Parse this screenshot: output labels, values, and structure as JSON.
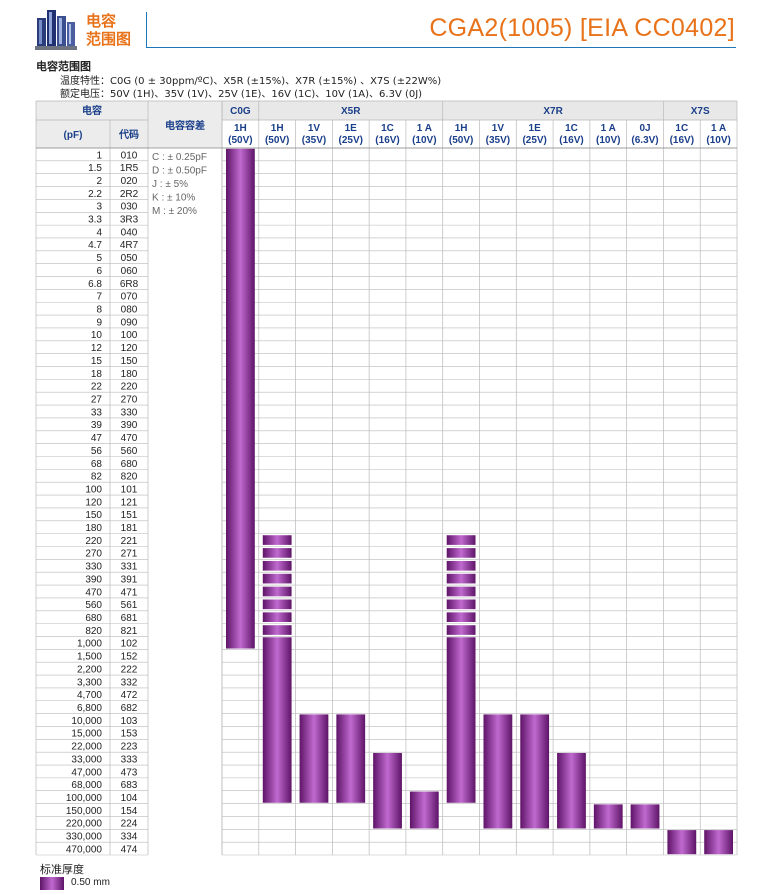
{
  "header": {
    "category": [
      "电容",
      "范围图"
    ],
    "title": "CGA2(1005) [EIA CC0402]"
  },
  "section_title": "电容范围图",
  "notes": {
    "temp_label": "温度特性：",
    "temp_value": "C0G (0 ± 30ppm/ºC)、X5R (±15%)、X7R (±15%) 、X7S (±22W%)",
    "volt_label": "额定电压：",
    "volt_value": "50V (1H)、35V (1V)、25V (1E)、16V (1C)、10V (1A)、6.3V (0J)"
  },
  "table": {
    "cap_header": "电容",
    "unit_header": "(pF)",
    "code_header": "代码",
    "tol_header": "电容容差",
    "tolerances": [
      "C : ± 0.25pF",
      "D : ± 0.50pF",
      "J : ± 5%",
      "K : ± 10%",
      "M : ± 20%"
    ],
    "groups": [
      {
        "name": "C0G",
        "cols": [
          0
        ]
      },
      {
        "name": "X5R",
        "cols": [
          1,
          2,
          3,
          4,
          5
        ]
      },
      {
        "name": "X7R",
        "cols": [
          6,
          7,
          8,
          9,
          10,
          11
        ]
      },
      {
        "name": "X7S",
        "cols": [
          12,
          13
        ]
      }
    ],
    "columns": [
      {
        "code": "1H",
        "volt": "(50V)"
      },
      {
        "code": "1H",
        "volt": "(50V)"
      },
      {
        "code": "1V",
        "volt": "(35V)"
      },
      {
        "code": "1E",
        "volt": "(25V)"
      },
      {
        "code": "1C",
        "volt": "(16V)"
      },
      {
        "code": "1 A",
        "volt": "(10V)"
      },
      {
        "code": "1H",
        "volt": "(50V)"
      },
      {
        "code": "1V",
        "volt": "(35V)"
      },
      {
        "code": "1E",
        "volt": "(25V)"
      },
      {
        "code": "1C",
        "volt": "(16V)"
      },
      {
        "code": "1 A",
        "volt": "(10V)"
      },
      {
        "code": "0J",
        "volt": "(6.3V)"
      },
      {
        "code": "1C",
        "volt": "(16V)"
      },
      {
        "code": "1 A",
        "volt": "(10V)"
      }
    ],
    "rows": [
      [
        "1",
        "010"
      ],
      [
        "1.5",
        "1R5"
      ],
      [
        "2",
        "020"
      ],
      [
        "2.2",
        "2R2"
      ],
      [
        "3",
        "030"
      ],
      [
        "3.3",
        "3R3"
      ],
      [
        "4",
        "040"
      ],
      [
        "4.7",
        "4R7"
      ],
      [
        "5",
        "050"
      ],
      [
        "6",
        "060"
      ],
      [
        "6.8",
        "6R8"
      ],
      [
        "7",
        "070"
      ],
      [
        "8",
        "080"
      ],
      [
        "9",
        "090"
      ],
      [
        "10",
        "100"
      ],
      [
        "12",
        "120"
      ],
      [
        "15",
        "150"
      ],
      [
        "18",
        "180"
      ],
      [
        "22",
        "220"
      ],
      [
        "27",
        "270"
      ],
      [
        "33",
        "330"
      ],
      [
        "39",
        "390"
      ],
      [
        "47",
        "470"
      ],
      [
        "56",
        "560"
      ],
      [
        "68",
        "680"
      ],
      [
        "82",
        "820"
      ],
      [
        "100",
        "101"
      ],
      [
        "120",
        "121"
      ],
      [
        "150",
        "151"
      ],
      [
        "180",
        "181"
      ],
      [
        "220",
        "221"
      ],
      [
        "270",
        "271"
      ],
      [
        "330",
        "331"
      ],
      [
        "390",
        "391"
      ],
      [
        "470",
        "471"
      ],
      [
        "560",
        "561"
      ],
      [
        "680",
        "681"
      ],
      [
        "820",
        "821"
      ],
      [
        "1,000",
        "102"
      ],
      [
        "1,500",
        "152"
      ],
      [
        "2,200",
        "222"
      ],
      [
        "3,300",
        "332"
      ],
      [
        "4,700",
        "472"
      ],
      [
        "6,800",
        "682"
      ],
      [
        "10,000",
        "103"
      ],
      [
        "15,000",
        "153"
      ],
      [
        "22,000",
        "223"
      ],
      [
        "33,000",
        "333"
      ],
      [
        "47,000",
        "473"
      ],
      [
        "68,000",
        "683"
      ],
      [
        "100,000",
        "104"
      ],
      [
        "150,000",
        "154"
      ],
      [
        "220,000",
        "224"
      ],
      [
        "330,000",
        "334"
      ],
      [
        "470,000",
        "474"
      ]
    ],
    "ranges": [
      {
        "col": 0,
        "from": "1",
        "to": "1,000",
        "style": "bar"
      },
      {
        "col": 1,
        "from": "220",
        "to": "820",
        "style": "pills"
      },
      {
        "col": 1,
        "from": "1,000",
        "to": "100,000",
        "style": "bar"
      },
      {
        "col": 2,
        "from": "10,000",
        "to": "100,000",
        "style": "bar"
      },
      {
        "col": 3,
        "from": "10,000",
        "to": "100,000",
        "style": "bar"
      },
      {
        "col": 4,
        "from": "33,000",
        "to": "220,000",
        "style": "bar"
      },
      {
        "col": 5,
        "from": "100,000",
        "to": "220,000",
        "style": "bar"
      },
      {
        "col": 6,
        "from": "220",
        "to": "820",
        "style": "pills"
      },
      {
        "col": 6,
        "from": "1,000",
        "to": "100,000",
        "style": "bar"
      },
      {
        "col": 7,
        "from": "10,000",
        "to": "220,000",
        "style": "bar"
      },
      {
        "col": 8,
        "from": "10,000",
        "to": "220,000",
        "style": "bar"
      },
      {
        "col": 9,
        "from": "33,000",
        "to": "220,000",
        "style": "bar"
      },
      {
        "col": 10,
        "from": "150,000",
        "to": "220,000",
        "style": "bar"
      },
      {
        "col": 11,
        "from": "150,000",
        "to": "220,000",
        "style": "bar"
      },
      {
        "col": 12,
        "from": "330,000",
        "to": "470,000",
        "style": "bar"
      },
      {
        "col": 13,
        "from": "330,000",
        "to": "470,000",
        "style": "bar"
      }
    ]
  },
  "legend": {
    "title": "标准厚度",
    "label": "0.50 mm"
  },
  "colors": {
    "header_blue": "#1b3f8a",
    "accent_orange": "#e8731a",
    "rule_blue": "#1d76b8",
    "bar_dark": "#5e1467",
    "bar_light": "#c06ad0",
    "grid": "#b9b9b9"
  }
}
